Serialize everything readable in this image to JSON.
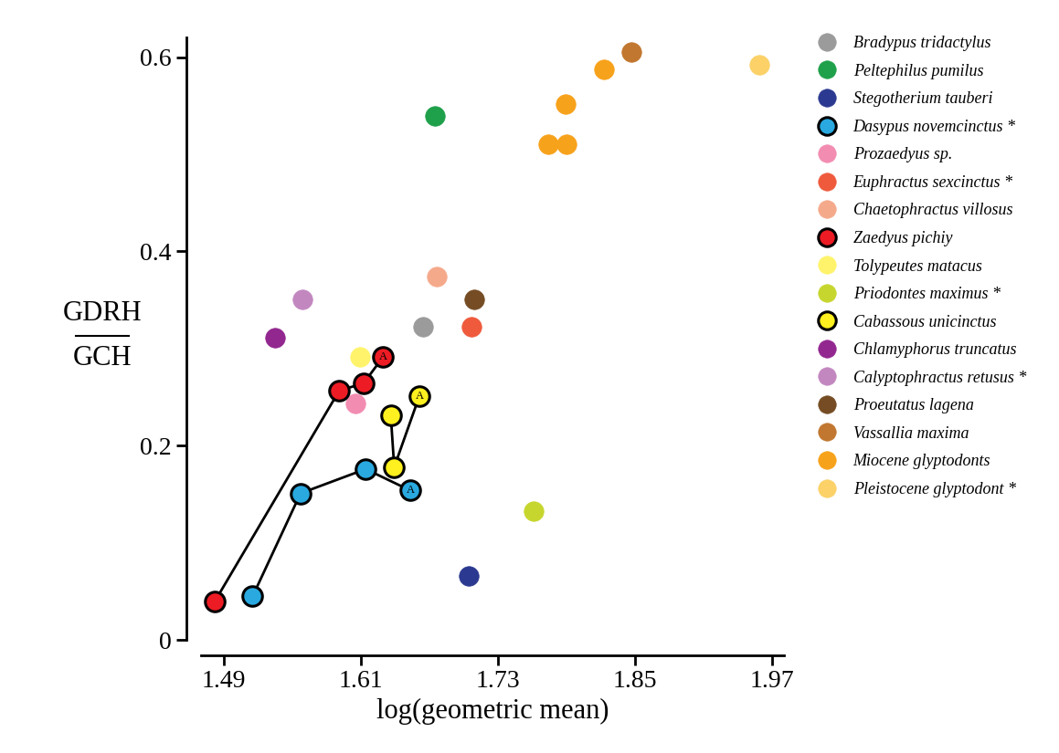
{
  "chart_data": {
    "type": "scatter",
    "x_label": "log(geometric mean)",
    "y_label": [
      "GDRH",
      "GCH"
    ],
    "xlim": [
      1.47,
      1.98
    ],
    "xticks": [
      1.49,
      1.61,
      1.73,
      1.85,
      1.97
    ],
    "ylim": [
      0,
      0.62
    ],
    "yticks": [
      0,
      0.2,
      0.4,
      0.6
    ],
    "grid": false,
    "legend": "right",
    "marker": "o",
    "series": [
      {
        "name": "Bradypus tridactylus",
        "color": "#9b9b9b",
        "line_style": "none",
        "x": [
          1.664
        ],
        "values": [
          0.322
        ],
        "labels": [
          null
        ]
      },
      {
        "name": "Peltephilus pumilus",
        "color": "#1fa04a",
        "line_style": "none",
        "x": [
          1.675
        ],
        "values": [
          0.539
        ],
        "labels": [
          null
        ]
      },
      {
        "name": "Stegotherium tauberi",
        "color": "#2b3990",
        "line_style": "none",
        "x": [
          1.704
        ],
        "values": [
          0.066
        ],
        "labels": [
          null
        ]
      },
      {
        "name": "Dasypus novemcinctus *",
        "color": "#29a9e0",
        "line_style": "solid",
        "x": [
          1.515,
          1.557,
          1.614,
          1.653
        ],
        "values": [
          0.045,
          0.151,
          0.176,
          0.154
        ],
        "labels": [
          null,
          null,
          null,
          "A"
        ]
      },
      {
        "name": "Prozaedyus sp.",
        "color": "#f28cb1",
        "line_style": "none",
        "x": [
          1.605
        ],
        "values": [
          0.244
        ],
        "labels": [
          null
        ]
      },
      {
        "name": "Euphractus sexcinctus *",
        "color": "#ef5a3c",
        "line_style": "none",
        "x": [
          1.707
        ],
        "values": [
          0.322
        ],
        "labels": [
          null
        ]
      },
      {
        "name": "Chaetophractus villosus",
        "color": "#f5a98b",
        "line_style": "none",
        "x": [
          1.676
        ],
        "values": [
          0.374
        ],
        "labels": [
          null
        ]
      },
      {
        "name": "Zaedyus pichiy",
        "color": "#ed1c24",
        "line_style": "solid",
        "x": [
          1.482,
          1.591,
          1.612,
          1.629
        ],
        "values": [
          0.04,
          0.257,
          0.264,
          0.291
        ],
        "labels": [
          null,
          null,
          null,
          "A"
        ]
      },
      {
        "name": "Tolypeutes matacus",
        "color": "#fff36b",
        "line_style": "none",
        "x": [
          1.609
        ],
        "values": [
          0.291
        ],
        "labels": [
          null
        ]
      },
      {
        "name": "Priodontes maximus *",
        "color": "#c7d62e",
        "line_style": "none",
        "x": [
          1.761
        ],
        "values": [
          0.133
        ],
        "labels": [
          null
        ]
      },
      {
        "name": "Cabassous unicinctus",
        "color": "#fff01f",
        "line_style": "solid",
        "x": [
          1.636,
          1.639,
          1.661
        ],
        "values": [
          0.231,
          0.178,
          0.251
        ],
        "labels": [
          null,
          null,
          "A"
        ]
      },
      {
        "name": "Chlamyphorus truncatus",
        "color": "#92278f",
        "line_style": "none",
        "x": [
          1.535
        ],
        "values": [
          0.311
        ],
        "labels": [
          null
        ]
      },
      {
        "name": "Calyptophractus retusus *",
        "color": "#c387c0",
        "line_style": "none",
        "x": [
          1.559
        ],
        "values": [
          0.351
        ],
        "labels": [
          null
        ]
      },
      {
        "name": "Proeutatus lagena",
        "color": "#754c24",
        "line_style": "none",
        "x": [
          1.709
        ],
        "values": [
          0.351
        ],
        "labels": [
          null
        ]
      },
      {
        "name": "Vassallia maxima",
        "color": "#c1772f",
        "line_style": "none",
        "x": [
          1.847
        ],
        "values": [
          0.605
        ],
        "labels": [
          null
        ]
      },
      {
        "name": "Miocene glyptodonts",
        "color": "#f7a21b",
        "line_style": "none",
        "x": [
          1.823,
          1.789,
          1.774,
          1.79
        ],
        "values": [
          0.587,
          0.552,
          0.51,
          0.51
        ],
        "labels": [
          null,
          null,
          null,
          null
        ]
      },
      {
        "name": "Pleistocene glyptodont *",
        "color": "#fbd168",
        "line_style": "none",
        "x": [
          1.959
        ],
        "values": [
          0.592
        ],
        "labels": [
          null
        ]
      }
    ]
  }
}
